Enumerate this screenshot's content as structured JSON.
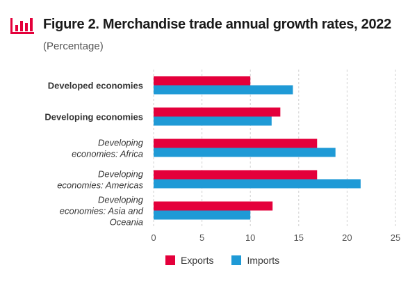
{
  "header": {
    "title": "Figure 2. Merchandise trade annual growth rates, 2022",
    "subtitle": "(Percentage)"
  },
  "colors": {
    "exports": "#e4003b",
    "imports": "#1f9ad6",
    "icon": "#e4003b",
    "grid": "#d0d0d0",
    "text": "#333333"
  },
  "icons": {
    "header": "bar-chart-icon"
  },
  "chart_data": {
    "type": "bar",
    "orientation": "horizontal",
    "categories": [
      {
        "lines": [
          "Developed economies"
        ],
        "style": "bold"
      },
      {
        "lines": [
          "Developing economies"
        ],
        "style": "bold"
      },
      {
        "lines": [
          "Developing",
          "economies: Africa"
        ],
        "style": "italic"
      },
      {
        "lines": [
          "Developing",
          "economies: Americas"
        ],
        "style": "italic"
      },
      {
        "lines": [
          "Developing",
          "economies: Asia and",
          "Oceania"
        ],
        "style": "italic"
      }
    ],
    "series": [
      {
        "name": "Exports",
        "color": "#e4003b",
        "values": [
          10,
          13.1,
          16.9,
          16.9,
          12.3
        ]
      },
      {
        "name": "Imports",
        "color": "#1f9ad6",
        "values": [
          14.4,
          12.2,
          18.8,
          21.4,
          10
        ]
      }
    ],
    "xlim": [
      0,
      25
    ],
    "xticks": [
      0,
      5,
      10,
      15,
      20,
      25
    ],
    "grid": true,
    "legend": "bottom"
  }
}
